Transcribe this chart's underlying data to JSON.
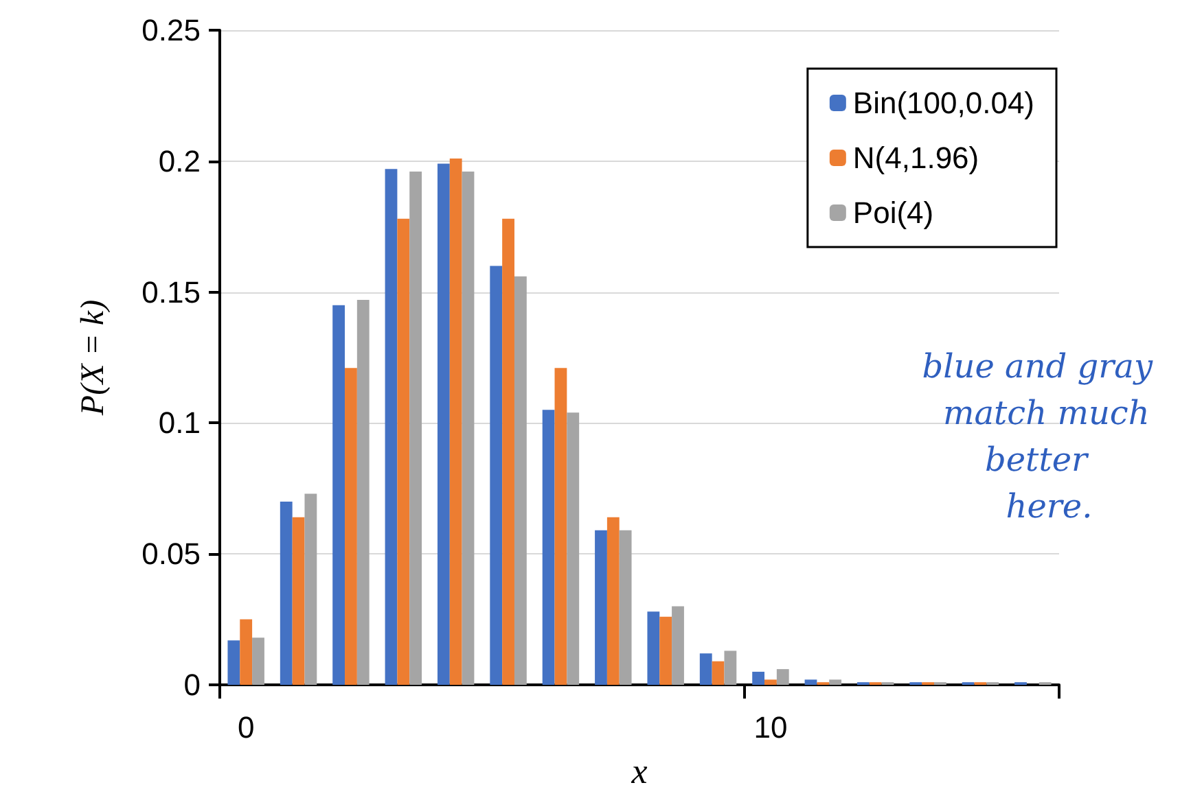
{
  "chart_data": {
    "type": "bar",
    "xlabel": "x",
    "ylabel": "P(X = k)",
    "categories": [
      "0",
      null,
      null,
      null,
      null,
      null,
      null,
      null,
      null,
      null,
      "10",
      null,
      null,
      null,
      null,
      null
    ],
    "series": [
      {
        "name": "Bin(100,0.04)",
        "color": "#4472c4",
        "values": [
          0.017,
          0.07,
          0.145,
          0.197,
          0.199,
          0.16,
          0.105,
          0.059,
          0.028,
          0.012,
          0.005,
          0.002,
          0.001,
          0.001,
          0.001,
          0.001
        ]
      },
      {
        "name": "N(4,1.96)",
        "color": "#ed7d31",
        "values": [
          0.025,
          0.064,
          0.121,
          0.178,
          0.201,
          0.178,
          0.121,
          0.064,
          0.026,
          0.009,
          0.002,
          0.001,
          0.001,
          0.001,
          0.001,
          0
        ]
      },
      {
        "name": "Poi(4)",
        "color": "#a5a5a5",
        "values": [
          0.018,
          0.073,
          0.147,
          0.196,
          0.196,
          0.156,
          0.104,
          0.059,
          0.03,
          0.013,
          0.006,
          0.002,
          0.001,
          0.001,
          0.001,
          0.001
        ]
      }
    ],
    "ylim": [
      0,
      0.25
    ],
    "yticks": [
      0,
      0.05,
      0.1,
      0.15,
      0.2,
      0.25
    ],
    "grid": "y",
    "legend": "top right",
    "annotations": [
      "blue and gray match much better here."
    ]
  }
}
